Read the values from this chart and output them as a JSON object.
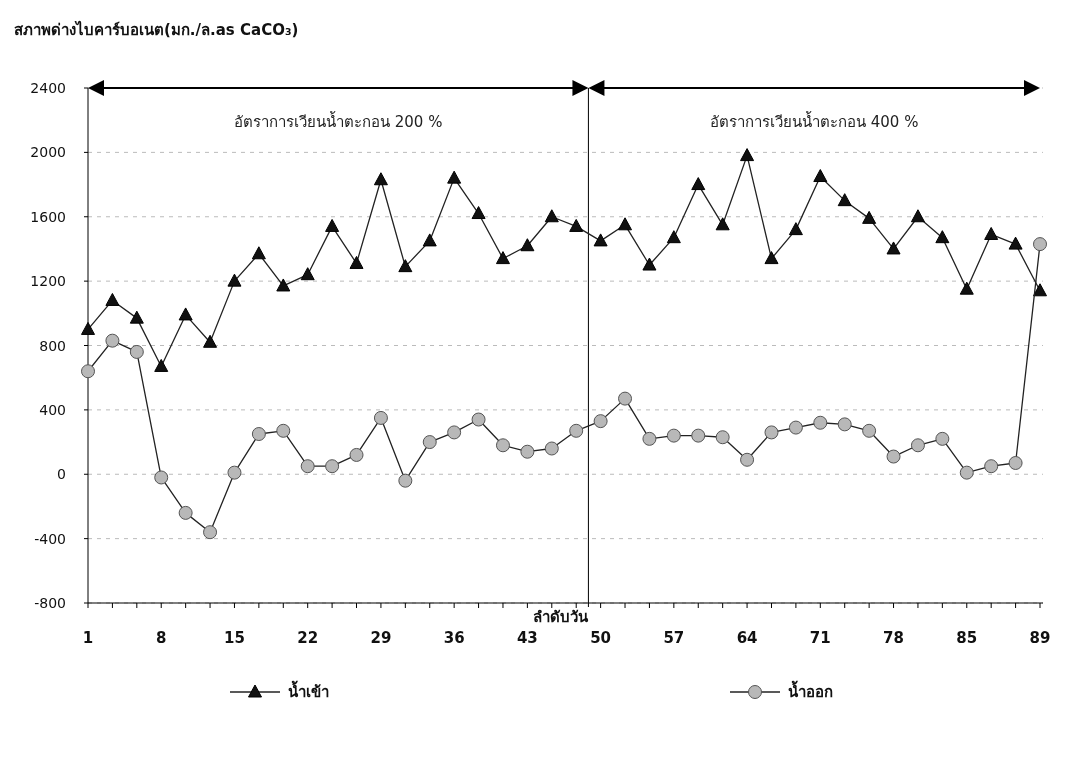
{
  "chart_data": {
    "type": "line",
    "title": "สภาพด่างไบคาร์บอเนต(มก./ล.as CaCO₃)",
    "xlabel": "ลำดับวัน",
    "categories": [
      "1",
      null,
      null,
      "8",
      null,
      null,
      "15",
      null,
      null,
      "22",
      null,
      null,
      "29",
      null,
      null,
      "36",
      null,
      null,
      "43",
      null,
      null,
      "50",
      null,
      null,
      "57",
      null,
      null,
      "64",
      null,
      null,
      "71",
      null,
      null,
      "78",
      null,
      null,
      "85",
      null,
      null,
      "89"
    ],
    "series": [
      {
        "name": "น้ำเข้า",
        "color": "#111111",
        "marker": "triangle",
        "values": [
          900,
          1080,
          970,
          670,
          990,
          820,
          1200,
          1370,
          1170,
          1240,
          1540,
          1310,
          1830,
          1290,
          1450,
          1840,
          1620,
          1340,
          1420,
          1600,
          1540,
          1450,
          1550,
          1300,
          1470,
          1800,
          1550,
          1980,
          1340,
          1520,
          1850,
          1700,
          1590,
          1400,
          1600,
          1470,
          1150,
          1490,
          1430,
          1140
        ]
      },
      {
        "name": "น้ำออก",
        "color": "#b8b8b8",
        "marker": "circle",
        "values": [
          640,
          830,
          760,
          -20,
          -240,
          -360,
          10,
          250,
          270,
          50,
          50,
          120,
          350,
          -40,
          200,
          260,
          340,
          180,
          140,
          160,
          270,
          330,
          470,
          220,
          240,
          240,
          230,
          90,
          260,
          290,
          320,
          310,
          270,
          110,
          180,
          220,
          10,
          50,
          70,
          1430
        ]
      }
    ],
    "ylim": [
      -800,
      2400
    ],
    "yticks": [
      -800,
      -400,
      0,
      400,
      800,
      1200,
      1600,
      2000,
      2400
    ],
    "grid": "y",
    "legend": "bottom",
    "line_style": "solid",
    "annotations": [
      "อัตราการเวียนน้ำตะกอน 200 %",
      "อัตราการเวียนน้ำตะกอน 400 %"
    ]
  }
}
